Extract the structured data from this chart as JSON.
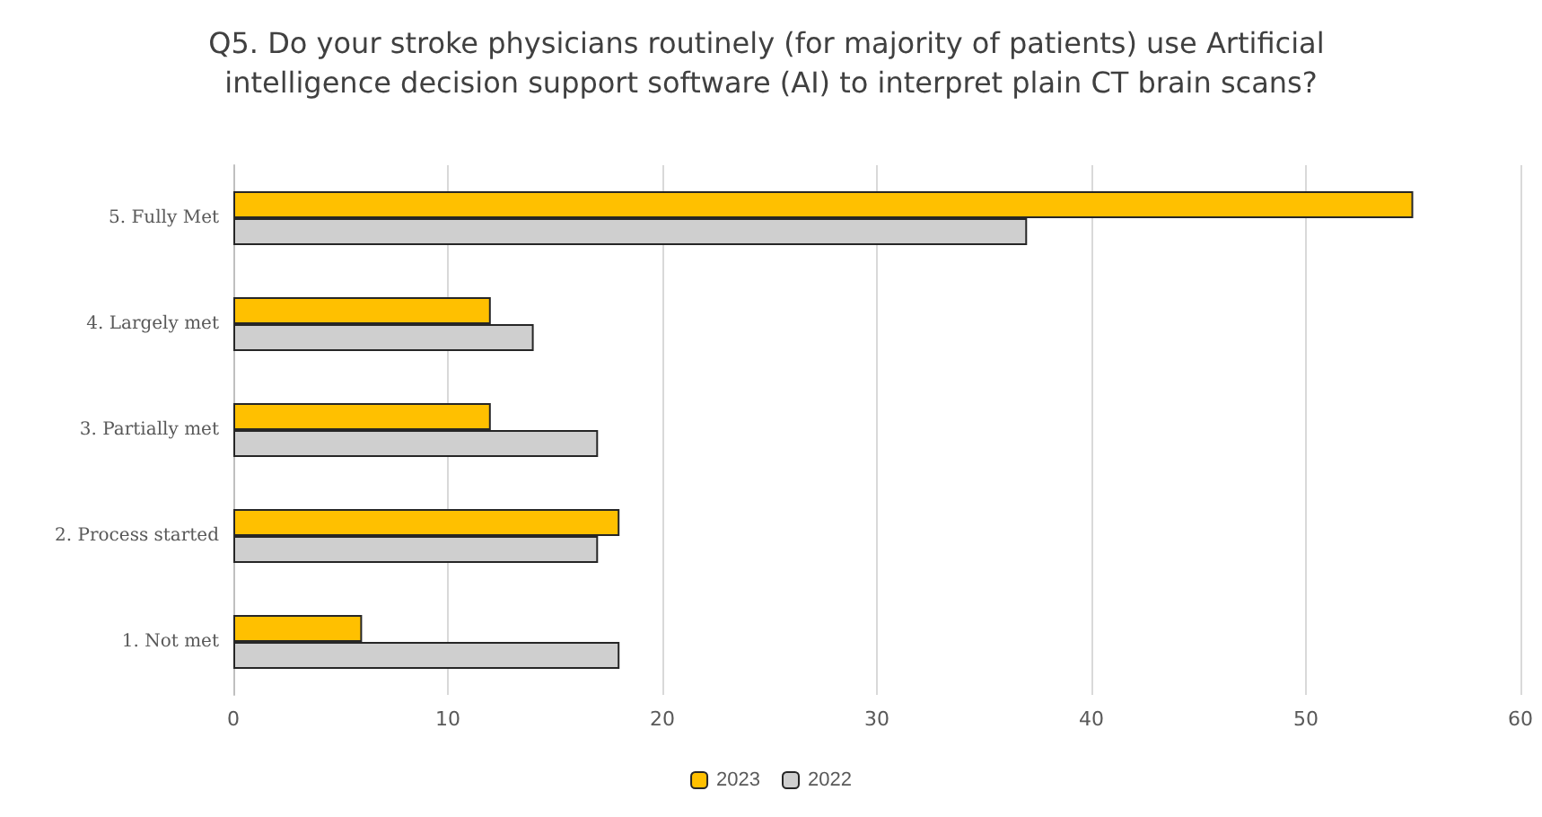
{
  "chart_data": {
    "type": "bar",
    "orientation": "horizontal",
    "title": "Q5. Do your stroke physicians routinely (for majority of patients) use Artificial intelligence decision support software (AI) to interpret plain CT brain scans?",
    "categories": [
      "5. Fully Met",
      "4. Largely met",
      "3. Partially met",
      "2. Process started",
      "1. Not met"
    ],
    "series": [
      {
        "name": "2023",
        "color": "#ffc000",
        "values": [
          55,
          12,
          12,
          18,
          6
        ]
      },
      {
        "name": "2022",
        "color": "#cfcfcf",
        "values": [
          37,
          14,
          17,
          17,
          18
        ]
      }
    ],
    "xlim": [
      0,
      60
    ],
    "xticks": [
      0,
      10,
      20,
      30,
      40,
      50,
      60
    ],
    "grid": "x",
    "legend": "bottom"
  }
}
